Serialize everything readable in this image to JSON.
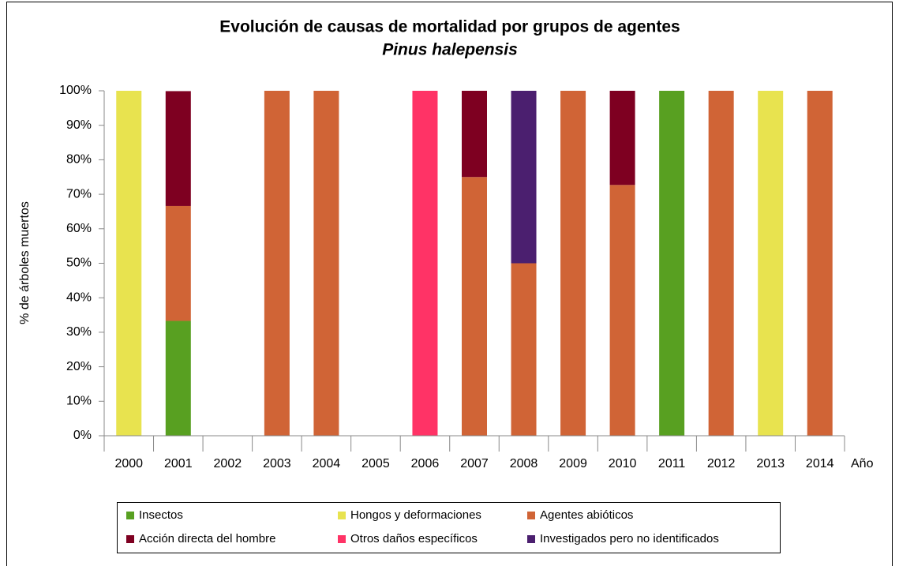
{
  "chart_data": {
    "type": "stacked_bar",
    "title": "Evolución de causas de mortalidad por grupos de agentes",
    "subtitle": "Pinus halepensis",
    "y_label": "% de árboles muertos",
    "x_label": "Año",
    "categories": [
      "2000",
      "2001",
      "2002",
      "2003",
      "2004",
      "2005",
      "2006",
      "2007",
      "2008",
      "2009",
      "2010",
      "2011",
      "2012",
      "2013",
      "2014"
    ],
    "series": [
      {
        "name": "Insectos",
        "color": "#58a021",
        "values": [
          0,
          33.3,
          0,
          0,
          0,
          0,
          0,
          0,
          0,
          0,
          0,
          100,
          0,
          0,
          0
        ]
      },
      {
        "name": "Hongos y deformaciones",
        "color": "#e8e34f",
        "values": [
          100,
          0,
          0,
          0,
          0,
          0,
          0,
          0,
          0,
          0,
          0,
          0,
          0,
          100,
          0
        ]
      },
      {
        "name": "Agentes abióticos",
        "color": "#d06436",
        "values": [
          0,
          33.3,
          0,
          100,
          100,
          0,
          0,
          75,
          50,
          100,
          72.7,
          0,
          100,
          0,
          100
        ]
      },
      {
        "name": "Acción directa del hombre",
        "color": "#7e0021",
        "values": [
          0,
          33.3,
          0,
          0,
          0,
          0,
          0,
          25,
          0,
          0,
          27.3,
          0,
          0,
          0,
          0
        ]
      },
      {
        "name": "Otros daños específicos",
        "color": "#ff3366",
        "values": [
          0,
          0,
          0,
          0,
          0,
          0,
          100,
          0,
          0,
          0,
          0,
          0,
          0,
          0,
          0
        ]
      },
      {
        "name": "Investigados pero no identificados",
        "color": "#4b1f6f",
        "values": [
          0,
          0,
          0,
          0,
          0,
          0,
          0,
          0,
          50,
          0,
          0,
          0,
          0,
          0,
          0
        ]
      }
    ],
    "ylim": [
      0,
      100
    ],
    "yticks": [
      {
        "value": 0,
        "label": "0%"
      },
      {
        "value": 10,
        "label": "10%"
      },
      {
        "value": 20,
        "label": "20%"
      },
      {
        "value": 30,
        "label": "30%"
      },
      {
        "value": 40,
        "label": "40%"
      },
      {
        "value": 50,
        "label": "50%"
      },
      {
        "value": 60,
        "label": "60%"
      },
      {
        "value": 70,
        "label": "70%"
      },
      {
        "value": 80,
        "label": "80%"
      },
      {
        "value": 90,
        "label": "90%"
      },
      {
        "value": 100,
        "label": "100%"
      }
    ],
    "legend": "bottom"
  }
}
